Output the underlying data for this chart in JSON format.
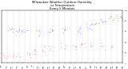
{
  "title": "Milwaukee Weather Outdoor Humidity\nvs Temperature\nEvery 5 Minutes",
  "title_fontsize": 2.8,
  "background_color": "#ffffff",
  "grid_color": "#bbbbbb",
  "blue_color": "#0000ff",
  "red_color": "#ff0000",
  "ylim": [
    0,
    100
  ],
  "tick_fontsize": 1.6,
  "n_points": 150,
  "seed": 7
}
